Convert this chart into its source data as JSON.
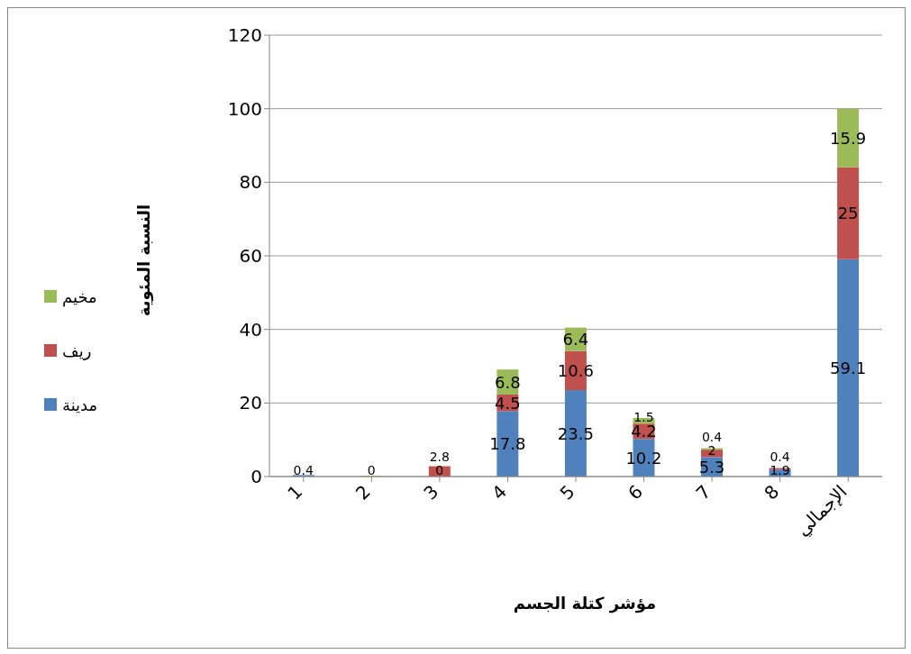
{
  "chart_data": {
    "type": "bar",
    "stacked": true,
    "xlabel": "مؤشر كتلة الجسم",
    "ylabel": "النسبة المئوية",
    "categories": [
      "1",
      "2",
      "3",
      "4",
      "5",
      "6",
      "7",
      "8",
      "الإجمالي"
    ],
    "series": [
      {
        "name": "مدينة",
        "color": "#4f81bd",
        "values": [
          0.4,
          0,
          0,
          17.8,
          23.5,
          10.2,
          5.3,
          1.9,
          59.1
        ],
        "value_labels": [
          "0.4",
          "0",
          "0",
          "17.8",
          "23.5",
          "10.2",
          "5.3",
          "1.9",
          "59.1"
        ]
      },
      {
        "name": "ريف",
        "color": "#c0504d",
        "values": [
          0,
          0,
          2.8,
          4.5,
          10.6,
          4.2,
          2.0,
          0.4,
          25
        ],
        "value_labels": [
          null,
          null,
          "2.8",
          "4.5",
          "10.6",
          "4.2",
          "2",
          "0.4",
          "25"
        ]
      },
      {
        "name": "مخيم",
        "color": "#9bbb59",
        "values": [
          0,
          0,
          0,
          6.8,
          6.4,
          1.5,
          0.4,
          0,
          15.9
        ],
        "value_labels": [
          null,
          null,
          null,
          "6.8",
          "6.4",
          "1.5",
          "0.4",
          null,
          "15.9"
        ]
      }
    ],
    "ylim": [
      0,
      120
    ],
    "yticks": [
      0,
      20,
      40,
      60,
      80,
      100,
      120
    ],
    "grid": "y",
    "legend": "left"
  }
}
